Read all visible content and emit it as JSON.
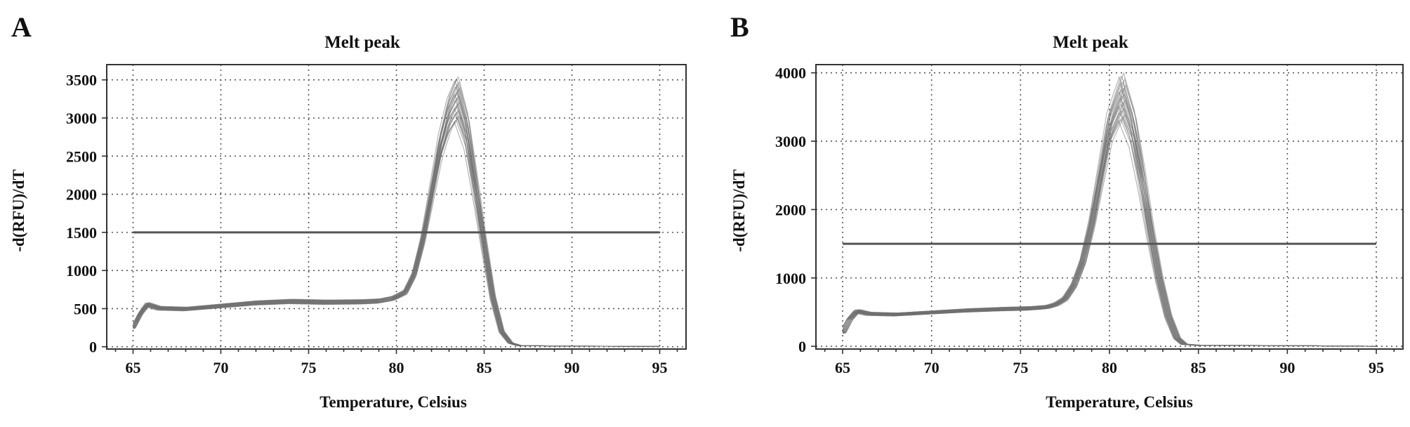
{
  "figure": {
    "panels": [
      "A",
      "B"
    ]
  },
  "chart_data": [
    {
      "panel": "A",
      "type": "line",
      "title": "Melt peak",
      "xlabel": "Temperature, Celsius",
      "ylabel": "-d(RFU)/dT",
      "xlim": [
        63.5,
        96.5
      ],
      "ylim": [
        -30,
        3700
      ],
      "xticks": [
        65,
        70,
        75,
        80,
        85,
        90,
        95
      ],
      "yticks": [
        0,
        500,
        1000,
        1500,
        2000,
        2500,
        3000,
        3500
      ],
      "grid": true,
      "threshold": 1500,
      "peak_x_range": [
        83.3,
        83.6
      ],
      "peak_y_range": [
        2950,
        3550
      ],
      "n_curves": 24,
      "profile": {
        "x": [
          65,
          65.4,
          65.8,
          66.5,
          68,
          70,
          72,
          74,
          76,
          78,
          79,
          79.8,
          80.5,
          81,
          81.5,
          82,
          82.5,
          83,
          83.45,
          84,
          84.5,
          85,
          85.5,
          86,
          86.5,
          87,
          90,
          95
        ],
        "y": [
          250,
          430,
          560,
          510,
          500,
          540,
          580,
          600,
          590,
          595,
          605,
          640,
          720,
          950,
          1400,
          2000,
          2600,
          3000,
          3200,
          2800,
          2100,
          1350,
          650,
          200,
          50,
          15,
          8,
          5
        ]
      }
    },
    {
      "panel": "B",
      "type": "line",
      "title": "Melt peak",
      "xlabel": "Temperature, Celsius",
      "ylabel": "-d(RFU)/dT",
      "xlim": [
        63.5,
        96.5
      ],
      "ylim": [
        -40,
        4120
      ],
      "xticks": [
        65,
        70,
        75,
        80,
        85,
        90,
        95
      ],
      "yticks": [
        0,
        1000,
        2000,
        3000,
        4000
      ],
      "grid": true,
      "threshold": 1500,
      "peak_x_range": [
        80.5,
        80.9
      ],
      "peak_y_range": [
        3300,
        4000
      ],
      "n_curves": 24,
      "profile": {
        "x": [
          65,
          65.4,
          65.8,
          66.5,
          68,
          70,
          72,
          74,
          75.5,
          76.5,
          77,
          77.5,
          78,
          78.5,
          79,
          79.5,
          80,
          80.7,
          81.3,
          81.8,
          82.3,
          82.8,
          83.3,
          83.8,
          84.2,
          85,
          90,
          95
        ],
        "y": [
          200,
          400,
          520,
          480,
          470,
          500,
          530,
          550,
          560,
          580,
          620,
          700,
          900,
          1250,
          1800,
          2500,
          3200,
          3650,
          3200,
          2500,
          1700,
          1000,
          450,
          120,
          30,
          15,
          10,
          0
        ]
      }
    }
  ]
}
